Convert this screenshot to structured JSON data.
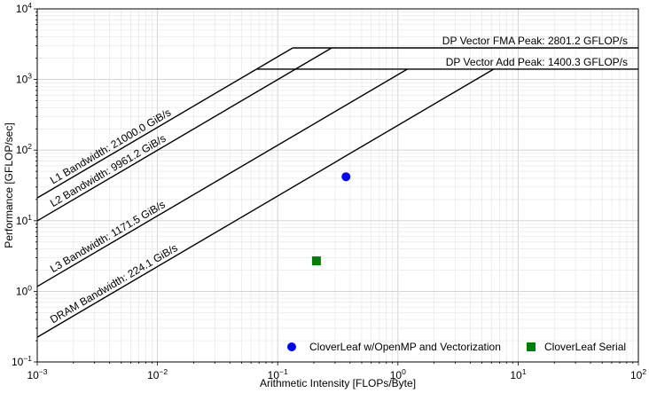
{
  "chart_data": {
    "type": "scatter",
    "xscale": "log",
    "yscale": "log",
    "xlim": [
      0.001,
      100
    ],
    "ylim": [
      0.1,
      10000
    ],
    "xlabel": "Arithmetic Intensity [FLOPs/Byte]",
    "ylabel": "Performance [GFLOP/sec]",
    "grid": true,
    "legend_position": "lower-right",
    "x_ticks": [
      {
        "base": "10",
        "exp": "−3"
      },
      {
        "base": "10",
        "exp": "−2"
      },
      {
        "base": "10",
        "exp": "−1"
      },
      {
        "base": "10",
        "exp": "0"
      },
      {
        "base": "10",
        "exp": "1"
      },
      {
        "base": "10",
        "exp": "2"
      }
    ],
    "y_ticks": [
      {
        "base": "10",
        "exp": "−1"
      },
      {
        "base": "10",
        "exp": "0"
      },
      {
        "base": "10",
        "exp": "1"
      },
      {
        "base": "10",
        "exp": "2"
      },
      {
        "base": "10",
        "exp": "3"
      },
      {
        "base": "10",
        "exp": "4"
      }
    ],
    "peaks": [
      {
        "label": "DP Vector FMA Peak: 2801.2 GFLOP/s",
        "value": 2801.2
      },
      {
        "label": "DP Vector Add Peak: 1400.3 GFLOP/s",
        "value": 1400.3
      }
    ],
    "bandwidths": [
      {
        "label": "L1 Bandwidth: 21000.0 GiB/s",
        "value": 21000.0
      },
      {
        "label": "L2 Bandwidth: 9961.2 GiB/s",
        "value": 9961.2
      },
      {
        "label": "L3 Bandwidth: 1171.5 GiB/s",
        "value": 1171.5
      },
      {
        "label": "DRAM Bandwidth: 224.1 GiB/s",
        "value": 224.1
      }
    ],
    "series": [
      {
        "name": "CloverLeaf w/OpenMP and Vectorization",
        "marker": "circle",
        "color": "#0000ff",
        "x": 0.37,
        "y": 42
      },
      {
        "name": "CloverLeaf Serial",
        "marker": "square",
        "color": "#008000",
        "x": 0.21,
        "y": 2.7
      }
    ]
  }
}
